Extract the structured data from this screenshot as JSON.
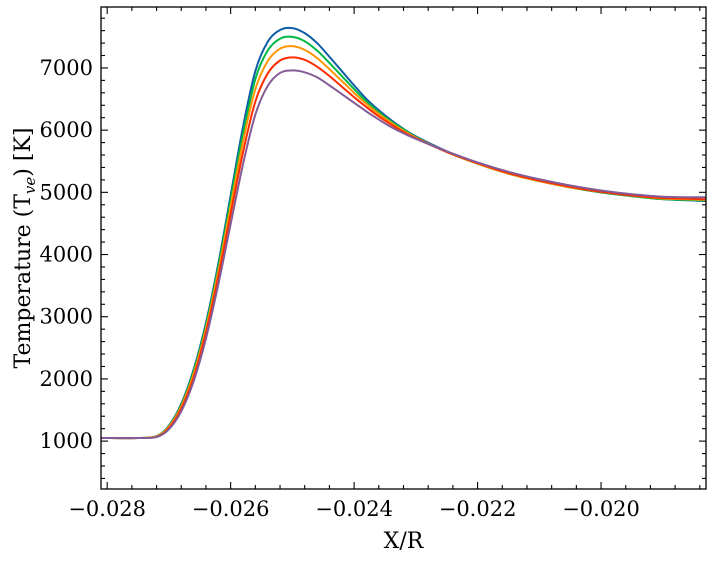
{
  "chart_data": {
    "type": "line",
    "title": "",
    "xlabel": "X/R",
    "ylabel": "Temperature (T",
    "ylabel_sub": "ve",
    "ylabel_unit": ") [K]",
    "xlim": [
      -0.0281,
      -0.0183
    ],
    "ylim": [
      230,
      7980
    ],
    "xticks": [
      -0.028,
      -0.026,
      -0.024,
      -0.022,
      -0.02
    ],
    "xtick_labels": [
      "−0.028",
      "−0.026",
      "−0.024",
      "−0.022",
      "−0.020"
    ],
    "yticks": [
      1000,
      2000,
      3000,
      4000,
      5000,
      6000,
      7000
    ],
    "ytick_labels": [
      "1000",
      "2000",
      "3000",
      "4000",
      "5000",
      "6000",
      "7000"
    ],
    "grid": false,
    "series": [
      {
        "color": "#0C5DA5",
        "x": [
          -0.0281,
          -0.0275,
          -0.0272,
          -0.027,
          -0.0268,
          -0.0266,
          -0.0264,
          -0.0262,
          -0.026,
          -0.0258,
          -0.0256,
          -0.0254,
          -0.0252,
          -0.025,
          -0.0248,
          -0.0246,
          -0.0244,
          -0.0242,
          -0.024,
          -0.0238,
          -0.0236,
          -0.0234,
          -0.0232,
          -0.023,
          -0.0225,
          -0.022,
          -0.0215,
          -0.021,
          -0.0205,
          -0.02,
          -0.0195,
          -0.019,
          -0.0183
        ],
        "y": [
          1050,
          1050,
          1080,
          1250,
          1600,
          2150,
          2900,
          3850,
          4950,
          6050,
          6950,
          7420,
          7610,
          7640,
          7560,
          7400,
          7180,
          6950,
          6720,
          6500,
          6320,
          6160,
          6020,
          5900,
          5660,
          5460,
          5300,
          5180,
          5080,
          5000,
          4940,
          4890,
          4860
        ]
      },
      {
        "color": "#00B945",
        "x": [
          -0.0281,
          -0.0275,
          -0.0272,
          -0.027,
          -0.0268,
          -0.0266,
          -0.0264,
          -0.0262,
          -0.026,
          -0.0258,
          -0.0256,
          -0.0254,
          -0.0252,
          -0.025,
          -0.0248,
          -0.0246,
          -0.0244,
          -0.0242,
          -0.024,
          -0.0238,
          -0.0236,
          -0.0234,
          -0.0232,
          -0.023,
          -0.0225,
          -0.022,
          -0.0215,
          -0.021,
          -0.0205,
          -0.02,
          -0.0195,
          -0.019,
          -0.0183
        ],
        "y": [
          1050,
          1050,
          1080,
          1240,
          1580,
          2120,
          2860,
          3800,
          4880,
          5940,
          6820,
          7280,
          7470,
          7500,
          7430,
          7280,
          7080,
          6870,
          6660,
          6460,
          6290,
          6140,
          6010,
          5890,
          5650,
          5460,
          5300,
          5180,
          5080,
          5000,
          4940,
          4890,
          4870
        ]
      },
      {
        "color": "#FF9500",
        "x": [
          -0.0281,
          -0.0275,
          -0.0272,
          -0.027,
          -0.0268,
          -0.0266,
          -0.0264,
          -0.0262,
          -0.026,
          -0.0258,
          -0.0256,
          -0.0254,
          -0.0252,
          -0.025,
          -0.0248,
          -0.0246,
          -0.0244,
          -0.0242,
          -0.024,
          -0.0238,
          -0.0236,
          -0.0234,
          -0.0232,
          -0.023,
          -0.0225,
          -0.022,
          -0.0215,
          -0.021,
          -0.0205,
          -0.02,
          -0.0195,
          -0.019,
          -0.0183
        ],
        "y": [
          1050,
          1050,
          1075,
          1230,
          1560,
          2080,
          2810,
          3730,
          4780,
          5810,
          6660,
          7110,
          7310,
          7350,
          7290,
          7160,
          6980,
          6790,
          6600,
          6420,
          6260,
          6120,
          5990,
          5880,
          5650,
          5460,
          5300,
          5180,
          5080,
          5010,
          4950,
          4900,
          4880
        ]
      },
      {
        "color": "#FF2C00",
        "x": [
          -0.0281,
          -0.0275,
          -0.0272,
          -0.027,
          -0.0268,
          -0.0266,
          -0.0264,
          -0.0262,
          -0.026,
          -0.0258,
          -0.0256,
          -0.0254,
          -0.0252,
          -0.025,
          -0.0248,
          -0.0246,
          -0.0244,
          -0.0242,
          -0.024,
          -0.0238,
          -0.0236,
          -0.0234,
          -0.0232,
          -0.023,
          -0.0225,
          -0.022,
          -0.0215,
          -0.021,
          -0.0205,
          -0.02,
          -0.0195,
          -0.019,
          -0.0183
        ],
        "y": [
          1050,
          1050,
          1070,
          1210,
          1520,
          2020,
          2740,
          3640,
          4650,
          5640,
          6460,
          6910,
          7120,
          7170,
          7130,
          7020,
          6870,
          6700,
          6530,
          6370,
          6220,
          6090,
          5970,
          5870,
          5650,
          5470,
          5310,
          5190,
          5090,
          5010,
          4950,
          4910,
          4890
        ]
      },
      {
        "color": "#845B97",
        "x": [
          -0.0281,
          -0.0275,
          -0.0272,
          -0.027,
          -0.0268,
          -0.0266,
          -0.0264,
          -0.0262,
          -0.026,
          -0.0258,
          -0.0256,
          -0.0254,
          -0.0252,
          -0.025,
          -0.0248,
          -0.0246,
          -0.0244,
          -0.0242,
          -0.024,
          -0.0238,
          -0.0236,
          -0.0234,
          -0.0232,
          -0.023,
          -0.0225,
          -0.022,
          -0.0215,
          -0.021,
          -0.0205,
          -0.02,
          -0.0195,
          -0.019,
          -0.0183
        ],
        "y": [
          1050,
          1050,
          1065,
          1190,
          1480,
          1960,
          2650,
          3520,
          4490,
          5450,
          6250,
          6710,
          6920,
          6960,
          6930,
          6850,
          6720,
          6580,
          6440,
          6300,
          6170,
          6050,
          5950,
          5860,
          5660,
          5480,
          5330,
          5210,
          5110,
          5030,
          4970,
          4930,
          4920
        ]
      }
    ]
  }
}
